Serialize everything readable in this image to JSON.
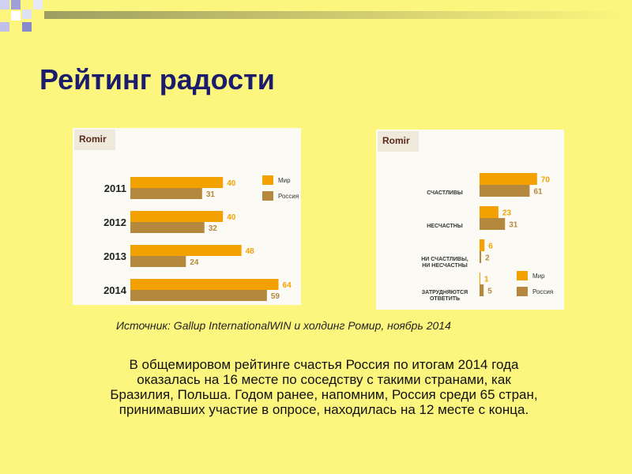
{
  "title": "Рейтинг радости",
  "chart_data": [
    {
      "type": "bar",
      "orientation": "horizontal",
      "logo": "Romir",
      "categories": [
        "2011",
        "2012",
        "2013",
        "2014"
      ],
      "series": [
        {
          "name": "Мир",
          "color": "#f2a100",
          "values": [
            40,
            40,
            48,
            64
          ]
        },
        {
          "name": "Россия",
          "color": "#b5893d",
          "values": [
            31,
            32,
            24,
            59
          ]
        }
      ]
    },
    {
      "type": "bar",
      "orientation": "horizontal",
      "logo": "Romir",
      "categories": [
        "СЧАСТЛИВЫ",
        "НЕСЧАСТНЫ",
        "НИ СЧАСТЛИВЫ, НИ НЕСЧАСТНЫ",
        "ЗАТРУДНЯЮТСЯ ОТВЕТИТЬ"
      ],
      "series": [
        {
          "name": "Мир",
          "color": "#f2a100",
          "values": [
            70,
            23,
            6,
            1
          ]
        },
        {
          "name": "Россия",
          "color": "#b5893d",
          "values": [
            61,
            31,
            2,
            5
          ]
        }
      ]
    }
  ],
  "source": "Источник: Gallup InternationalWIN и холдинг Ромир, ноябрь 2014",
  "body": [
    "В общемировом рейтинге счастья Россия по итогам 2014 года",
    "оказалась на 16 месте по соседству с такими странами, как",
    "Бразилия, Польша. Годом ранее, напомним, Россия среди 65 стран,",
    "принимавших участие в опросе, находилась на 12 месте с конца."
  ]
}
